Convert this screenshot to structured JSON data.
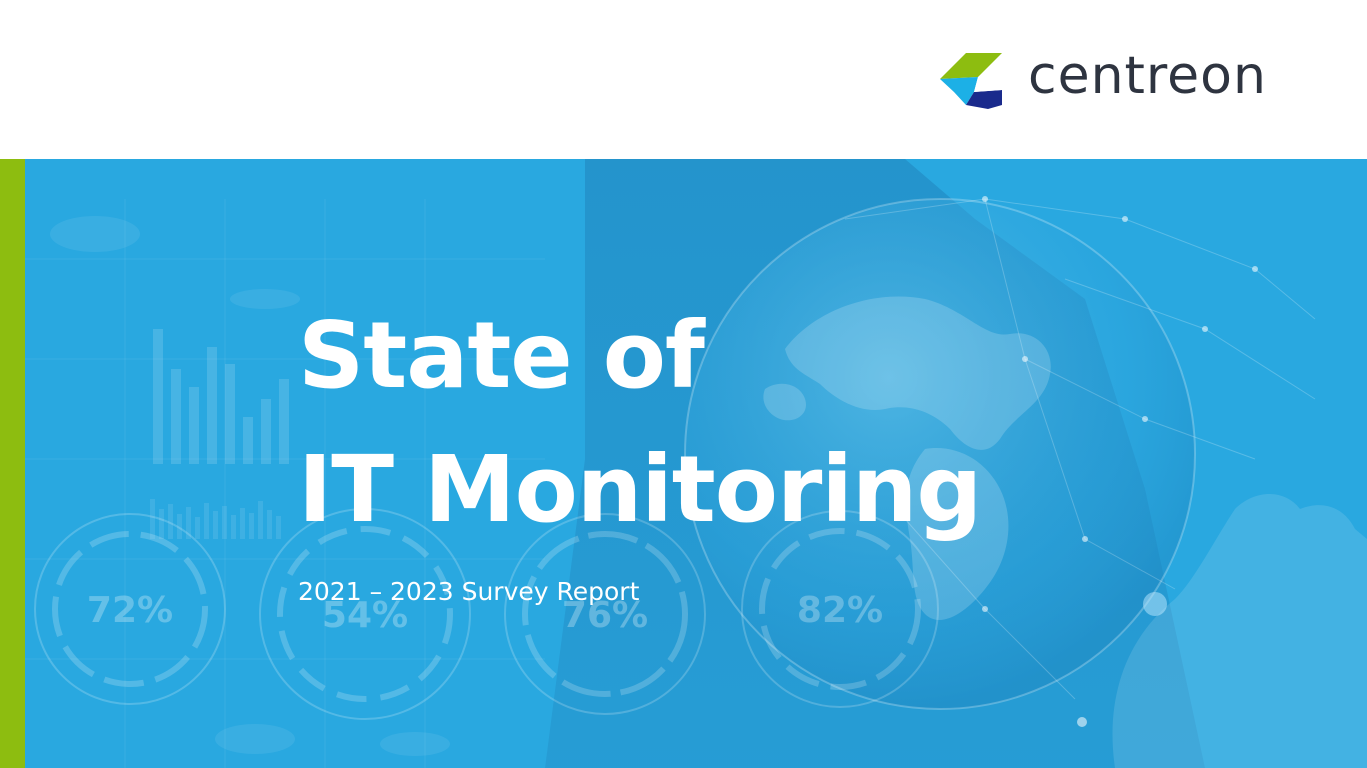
{
  "brand": {
    "name": "centreon",
    "colors": {
      "logo_green": "#8dbd10",
      "logo_cyan": "#1cb0e6",
      "logo_navy": "#1a2a8c",
      "text_dark": "#2e3440",
      "hero_blue": "#29a8e0",
      "accent_green": "#8dbd10"
    }
  },
  "hero": {
    "title_line_1": "State of",
    "title_line_2": "IT Monitoring",
    "subtitle": "2021 – 2023 Survey Report",
    "background_gauges": [
      "72%",
      "54%",
      "76%",
      "82%"
    ]
  }
}
